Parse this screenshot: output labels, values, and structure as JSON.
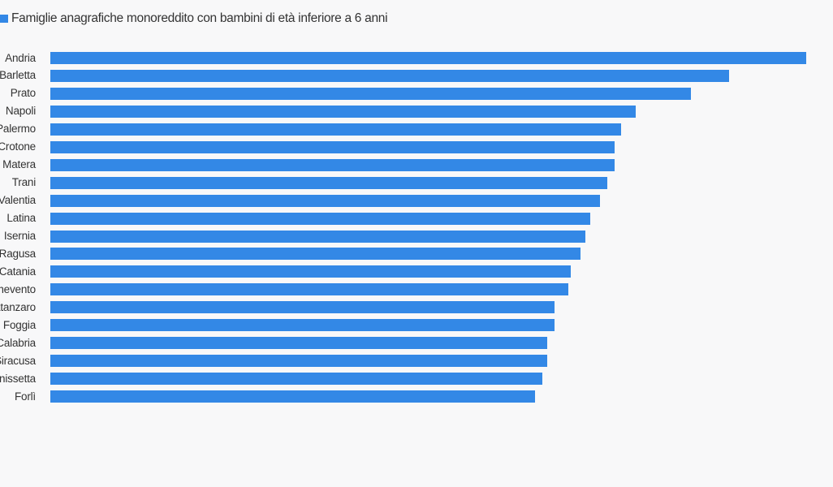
{
  "chart_data": {
    "type": "bar",
    "orientation": "horizontal",
    "legend": [
      "Famiglie anagrafiche monoreddito con bambini di età inferiore a 6 anni"
    ],
    "legend_placement": "top-left",
    "categories": [
      "Andria",
      "Barletta",
      "Prato",
      "Napoli",
      "Palermo",
      "Crotone",
      "Matera",
      "Trani",
      "Vibo Valentia",
      "Latina",
      "Isernia",
      "Ragusa",
      "Catania",
      "Benevento",
      "Catanzaro",
      "Foggia",
      "Reggio Calabria",
      "Siracusa",
      "Caltanissetta",
      "Forlì"
    ],
    "series": [
      {
        "name": "Famiglie anagrafiche monoreddito con bambini di età inferiore a 6 anni",
        "values": [
          931,
          836,
          789,
          721,
          703,
          695,
          695,
          686,
          677,
          665,
          659,
          653,
          641,
          638,
          621,
          621,
          612,
          612,
          606,
          597
        ]
      }
    ],
    "value_units": "relative (no axis shown)",
    "xlim": [
      0,
      931
    ],
    "grid": false,
    "color": "#3388e6"
  }
}
